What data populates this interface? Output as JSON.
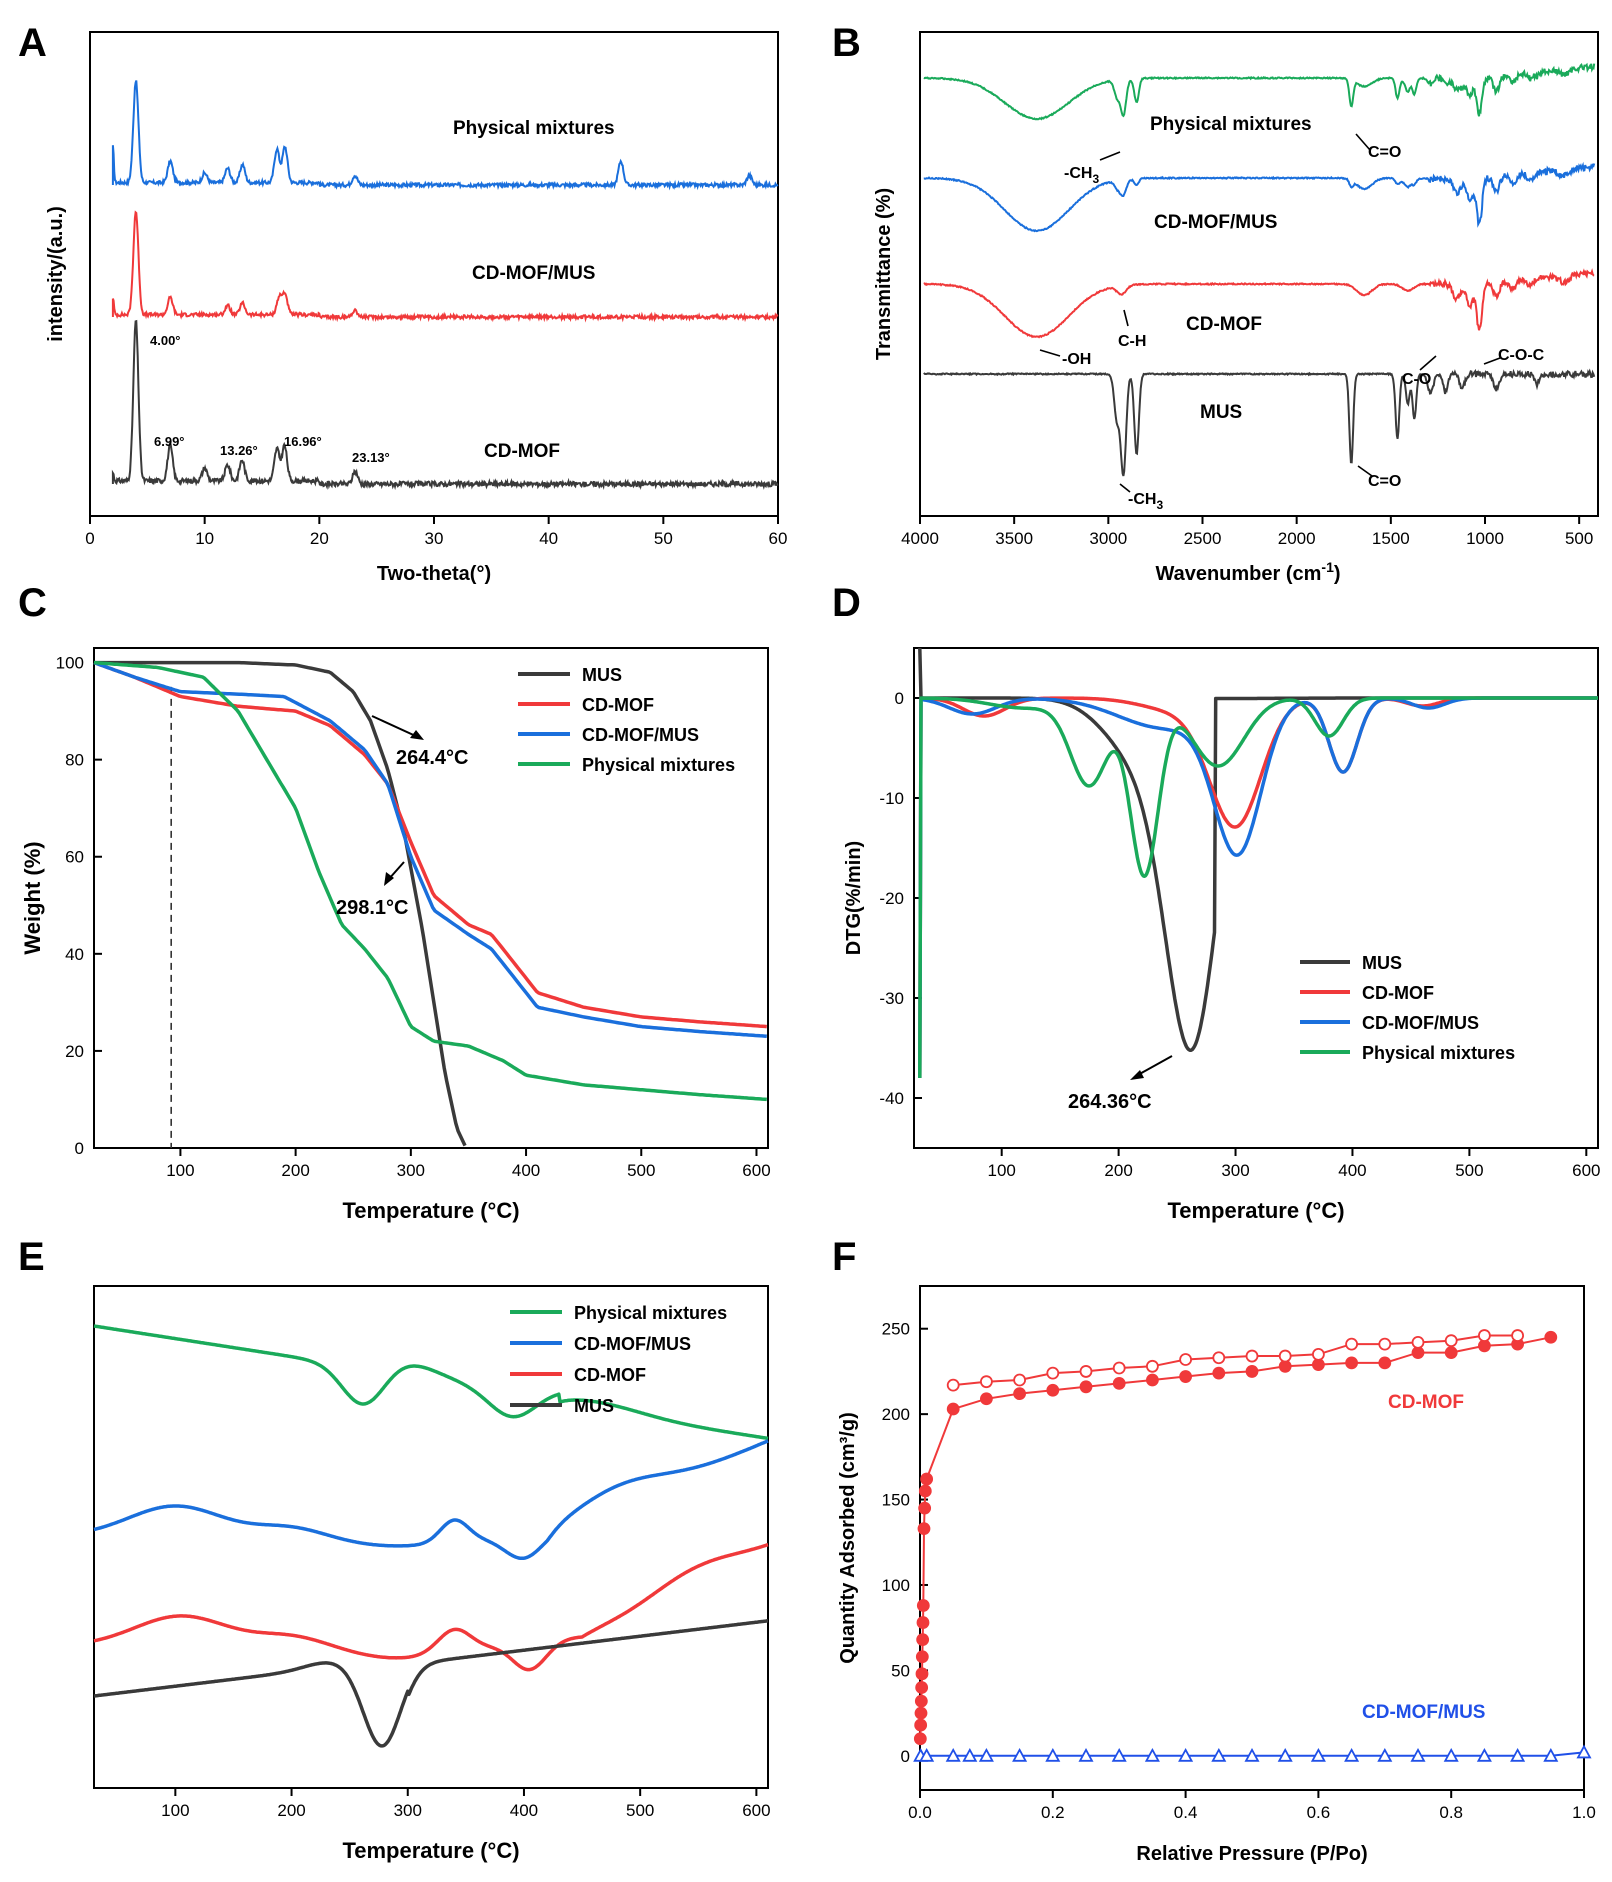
{
  "colors": {
    "black": "#3a3a3a",
    "red": "#f0393a",
    "blue": "#1a6fdc",
    "green": "#1aaa5a",
    "fblue": "#2050e8"
  },
  "chart_data": [
    {
      "panel": "A",
      "type": "line",
      "xlabel": "Two-theta(°)",
      "ylabel": "intensity/(a.u.)",
      "xlim": [
        0,
        60
      ],
      "xticks": [
        "0",
        "10",
        "20",
        "30",
        "40",
        "50",
        "60"
      ],
      "series": [
        {
          "name": "Physical mixtures",
          "color": "blue",
          "offset": 2.0,
          "peaks": [
            [
              2.0,
              0.3
            ],
            [
              4.0,
              0.85
            ],
            [
              7.0,
              0.18
            ],
            [
              10.0,
              0.08
            ],
            [
              12.0,
              0.12
            ],
            [
              13.3,
              0.15
            ],
            [
              16.3,
              0.28
            ],
            [
              17.0,
              0.3
            ],
            [
              23.1,
              0.08
            ],
            [
              46.3,
              0.2
            ],
            [
              57.5,
              0.08
            ]
          ]
        },
        {
          "name": "CD-MOF/MUS",
          "color": "red",
          "offset": 1.0,
          "peaks": [
            [
              2.0,
              0.15
            ],
            [
              4.0,
              0.9
            ],
            [
              7.0,
              0.15
            ],
            [
              12.0,
              0.08
            ],
            [
              13.3,
              0.1
            ],
            [
              16.5,
              0.15
            ],
            [
              17.0,
              0.18
            ],
            [
              23.1,
              0.06
            ]
          ]
        },
        {
          "name": "CD-MOF",
          "color": "black",
          "offset": 0.0,
          "peaks": [
            [
              2.0,
              0.05
            ],
            [
              4.0,
              1.0
            ],
            [
              6.99,
              0.22
            ],
            [
              10.0,
              0.08
            ],
            [
              12.0,
              0.1
            ],
            [
              13.26,
              0.13
            ],
            [
              16.3,
              0.2
            ],
            [
              16.96,
              0.22
            ],
            [
              23.13,
              0.08
            ]
          ]
        }
      ],
      "annotations": [
        "4.00°",
        "6.99°",
        "13.26°",
        "16.96°",
        "23.13°"
      ]
    },
    {
      "panel": "B",
      "type": "line",
      "xlabel": "Wavenumber (cm",
      "xlabel_sup": "-1",
      "xlabel_end": ")",
      "ylabel": "Transmittance (%)",
      "xlim": [
        4000,
        400
      ],
      "xticks": [
        "4000",
        "3500",
        "3000",
        "2500",
        "2000",
        "1500",
        "1000",
        "500"
      ],
      "series": [
        {
          "name": "Physical mixtures",
          "color": "green",
          "offset": 3.3
        },
        {
          "name": "CD-MOF/MUS",
          "color": "blue",
          "offset": 2.3
        },
        {
          "name": "CD-MOF",
          "color": "red",
          "offset": 1.2
        },
        {
          "name": "MUS",
          "color": "black",
          "offset": 0.0
        }
      ],
      "annotations": [
        "-CH",
        "C=O",
        "C-H",
        "-OH",
        "C-O",
        "C-O-C",
        "-CH",
        "C=O"
      ],
      "sub3": "3"
    },
    {
      "panel": "C",
      "type": "line",
      "xlabel": "Temperature (°C)",
      "ylabel": "Weight (%)",
      "xlim": [
        25,
        610
      ],
      "ylim": [
        0,
        103
      ],
      "xticks": [
        "100",
        "200",
        "300",
        "400",
        "500",
        "600"
      ],
      "yticks": [
        "0",
        "20",
        "40",
        "60",
        "80",
        "100"
      ],
      "series": [
        {
          "name": "MUS",
          "color": "black",
          "x": [
            25,
            100,
            150,
            200,
            230,
            250,
            265,
            280,
            295,
            310,
            320,
            330,
            340,
            348
          ],
          "y": [
            100,
            100,
            100,
            99.5,
            98,
            94,
            88,
            78,
            64,
            45,
            30,
            15,
            4,
            0
          ]
        },
        {
          "name": "CD-MOF",
          "color": "red",
          "x": [
            25,
            60,
            100,
            150,
            200,
            230,
            260,
            280,
            300,
            320,
            350,
            370,
            390,
            410,
            450,
            500,
            550,
            610
          ],
          "y": [
            100,
            97,
            93,
            91,
            90,
            87,
            81,
            75,
            63,
            52,
            46,
            44,
            38,
            32,
            29,
            27,
            26,
            25
          ]
        },
        {
          "name": "CD-MOF/MUS",
          "color": "blue",
          "x": [
            25,
            60,
            100,
            150,
            190,
            230,
            260,
            280,
            300,
            320,
            350,
            370,
            390,
            410,
            450,
            500,
            550,
            610
          ],
          "y": [
            100,
            97,
            94,
            93.5,
            93,
            88,
            82,
            75,
            60,
            49,
            44,
            41,
            35,
            29,
            27,
            25,
            24,
            23
          ]
        },
        {
          "name": "Physical mixtures",
          "color": "green",
          "x": [
            25,
            80,
            120,
            150,
            180,
            200,
            220,
            240,
            260,
            280,
            300,
            320,
            350,
            380,
            400,
            450,
            500,
            550,
            610
          ],
          "y": [
            100,
            99,
            97,
            90,
            78,
            70,
            57,
            46,
            41,
            35,
            25,
            22,
            21,
            18,
            15,
            13,
            12,
            11,
            10
          ]
        }
      ],
      "annotations": [
        "264.4°C",
        "298.1°C"
      ],
      "dashed_x": 92
    },
    {
      "panel": "D",
      "type": "line",
      "xlabel": "Temperature (°C)",
      "ylabel": "DTG(%/min)",
      "xlim": [
        25,
        610
      ],
      "ylim": [
        -45,
        5
      ],
      "xticks": [
        "100",
        "200",
        "300",
        "400",
        "500",
        "600"
      ],
      "yticks": [
        "0",
        "-10",
        "-20",
        "-30",
        "-40"
      ],
      "series": [
        {
          "name": "MUS",
          "color": "black"
        },
        {
          "name": "CD-MOF",
          "color": "red"
        },
        {
          "name": "CD-MOF/MUS",
          "color": "blue"
        },
        {
          "name": "Physical mixtures",
          "color": "green"
        }
      ],
      "annotations": [
        "264.36°C"
      ]
    },
    {
      "panel": "E",
      "type": "line",
      "xlabel": "Temperature (°C)",
      "xlim": [
        30,
        610
      ],
      "xticks": [
        "100",
        "200",
        "300",
        "400",
        "500",
        "600"
      ],
      "series": [
        {
          "name": "Physical mixtures",
          "color": "green"
        },
        {
          "name": "CD-MOF/MUS",
          "color": "blue"
        },
        {
          "name": "CD-MOF",
          "color": "red"
        },
        {
          "name": "MUS",
          "color": "black"
        }
      ]
    },
    {
      "panel": "F",
      "type": "scatter",
      "xlabel": "Relative Pressure (P/Po)",
      "ylabel": "Quantity Adsorbed (cm³/g)",
      "xlim": [
        0,
        1.0
      ],
      "ylim": [
        -20,
        275
      ],
      "xticks": [
        "0.0",
        "0.2",
        "0.4",
        "0.6",
        "0.8",
        "1.0"
      ],
      "yticks": [
        "0",
        "50",
        "100",
        "150",
        "200",
        "250"
      ],
      "series": [
        {
          "name": "CD-MOF",
          "color": "red",
          "kind": "adsorption",
          "x": [
            0.0005,
            0.001,
            0.0015,
            0.002,
            0.0025,
            0.003,
            0.0035,
            0.004,
            0.0045,
            0.005,
            0.006,
            0.007,
            0.008,
            0.01,
            0.05,
            0.1,
            0.15,
            0.2,
            0.25,
            0.3,
            0.35,
            0.4,
            0.45,
            0.5,
            0.55,
            0.6,
            0.65,
            0.7,
            0.75,
            0.8,
            0.85,
            0.9,
            0.95
          ],
          "y": [
            10,
            18,
            25,
            32,
            40,
            48,
            58,
            68,
            78,
            88,
            133,
            145,
            155,
            162,
            203,
            209,
            212,
            214,
            216,
            218,
            220,
            222,
            224,
            225,
            228,
            229,
            230,
            230,
            236,
            236,
            240,
            241,
            245
          ]
        },
        {
          "name": "CD-MOF desorption",
          "color": "red",
          "kind": "desorption",
          "x": [
            0.05,
            0.1,
            0.15,
            0.2,
            0.25,
            0.3,
            0.35,
            0.4,
            0.45,
            0.5,
            0.55,
            0.6,
            0.65,
            0.7,
            0.75,
            0.8,
            0.85,
            0.9
          ],
          "y": [
            217,
            219,
            220,
            224,
            225,
            227,
            228,
            232,
            233,
            234,
            234,
            235,
            241,
            241,
            242,
            243,
            246,
            246
          ]
        },
        {
          "name": "CD-MOF/MUS",
          "color": "fblue",
          "x": [
            0.001,
            0.01,
            0.05,
            0.075,
            0.1,
            0.15,
            0.2,
            0.25,
            0.3,
            0.35,
            0.4,
            0.45,
            0.5,
            0.55,
            0.6,
            0.65,
            0.7,
            0.75,
            0.8,
            0.85,
            0.9,
            0.95,
            1.0
          ],
          "y": [
            0,
            0,
            0,
            0,
            0,
            0,
            0,
            0,
            0,
            0,
            0,
            0,
            0,
            0,
            0,
            0,
            0,
            0,
            0,
            0,
            0,
            0,
            2
          ]
        }
      ]
    }
  ]
}
